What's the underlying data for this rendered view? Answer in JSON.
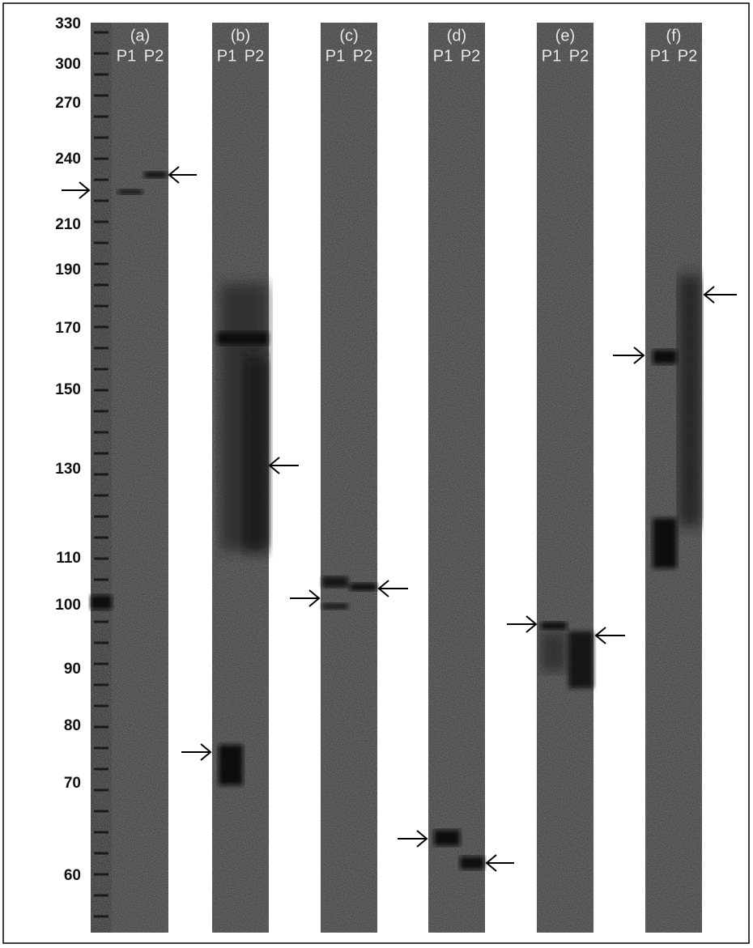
{
  "size_markers": [
    "330",
    "300",
    "270",
    "240",
    "210",
    "190",
    "170",
    "150",
    "130",
    "110",
    "100",
    "90",
    "80",
    "70",
    "60"
  ],
  "lanes": [
    {
      "label": "(a)",
      "p1": "P1",
      "p2": "P2"
    },
    {
      "label": "(b)",
      "p1": "P1",
      "p2": "P2"
    },
    {
      "label": "(c)",
      "p1": "P1",
      "p2": "P2"
    },
    {
      "label": "(d)",
      "p1": "P1",
      "p2": "P2"
    },
    {
      "label": "(e)",
      "p1": "P1",
      "p2": "P2"
    },
    {
      "label": "(f)",
      "p1": "P1",
      "p2": "P2"
    }
  ]
}
